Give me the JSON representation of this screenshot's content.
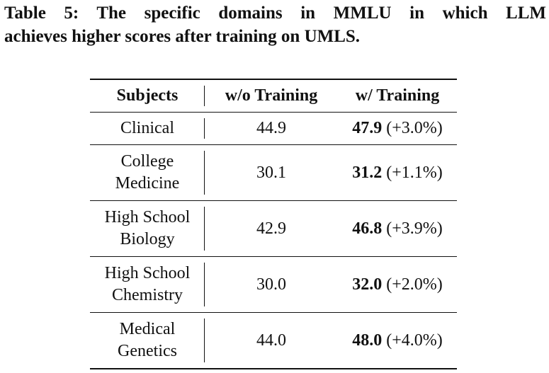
{
  "caption": {
    "line1": "Table 5: The specific domains in MMLU in which LLM",
    "line2": "achieves higher scores after training on UMLS."
  },
  "table": {
    "headers": [
      "Subjects",
      "w/o Training",
      "w/ Training"
    ],
    "rows": [
      {
        "subject": [
          "Clinical"
        ],
        "wo": "44.9",
        "w": "47.9",
        "delta": "(+3.0%)"
      },
      {
        "subject": [
          "College",
          "Medicine"
        ],
        "wo": "30.1",
        "w": "31.2",
        "delta": "(+1.1%)"
      },
      {
        "subject": [
          "High School",
          "Biology"
        ],
        "wo": "42.9",
        "w": "46.8",
        "delta": "(+3.9%)"
      },
      {
        "subject": [
          "High School",
          "Chemistry"
        ],
        "wo": "30.0",
        "w": "32.0",
        "delta": "(+2.0%)"
      },
      {
        "subject": [
          "Medical",
          "Genetics"
        ],
        "wo": "44.0",
        "w": "48.0",
        "delta": "(+4.0%)"
      }
    ]
  }
}
